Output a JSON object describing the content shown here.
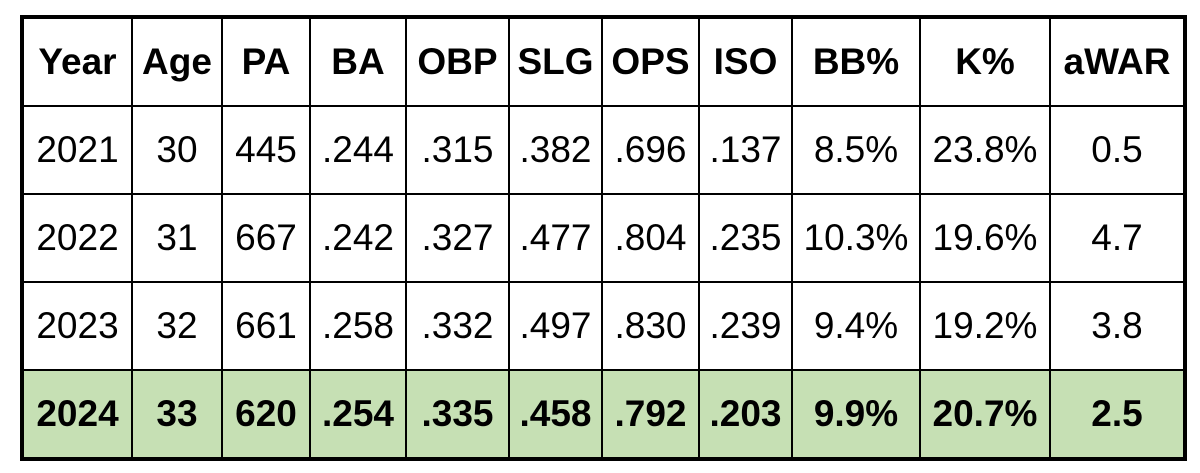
{
  "table": {
    "header": [
      "Year",
      "Age",
      "PA",
      "BA",
      "OBP",
      "SLG",
      "OPS",
      "ISO",
      "BB%",
      "K%",
      "aWAR"
    ],
    "rows": [
      [
        "2021",
        "30",
        "445",
        ".244",
        ".315",
        ".382",
        ".696",
        ".137",
        "8.5%",
        "23.8%",
        "0.5"
      ],
      [
        "2022",
        "31",
        "667",
        ".242",
        ".327",
        ".477",
        ".804",
        ".235",
        "10.3%",
        "19.6%",
        "4.7"
      ],
      [
        "2023",
        "32",
        "661",
        ".258",
        ".332",
        ".497",
        ".830",
        ".239",
        "9.4%",
        "19.2%",
        "3.8"
      ],
      [
        "2024",
        "33",
        "620",
        ".254",
        ".335",
        ".458",
        ".792",
        ".203",
        "9.9%",
        "20.7%",
        "2.5"
      ]
    ]
  }
}
